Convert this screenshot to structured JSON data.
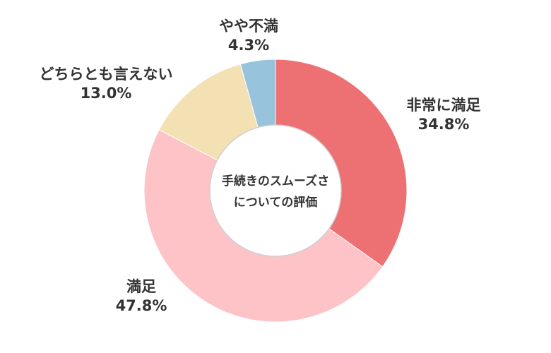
{
  "chart_data": {
    "type": "pie",
    "variant": "donut",
    "center_title": [
      "手続きのスムーズさ",
      "についての評価"
    ],
    "categories": [
      "非常に満足",
      "満足",
      "どちらとも言えない",
      "やや不満"
    ],
    "values": [
      34.8,
      47.8,
      13.0,
      4.3
    ],
    "value_labels": [
      "34.8%",
      "47.8%",
      "13.0%",
      "4.3%"
    ],
    "colors": [
      "#ed7073",
      "#fdc3c6",
      "#f3e1b3",
      "#97c4dc"
    ],
    "unit": "%"
  }
}
